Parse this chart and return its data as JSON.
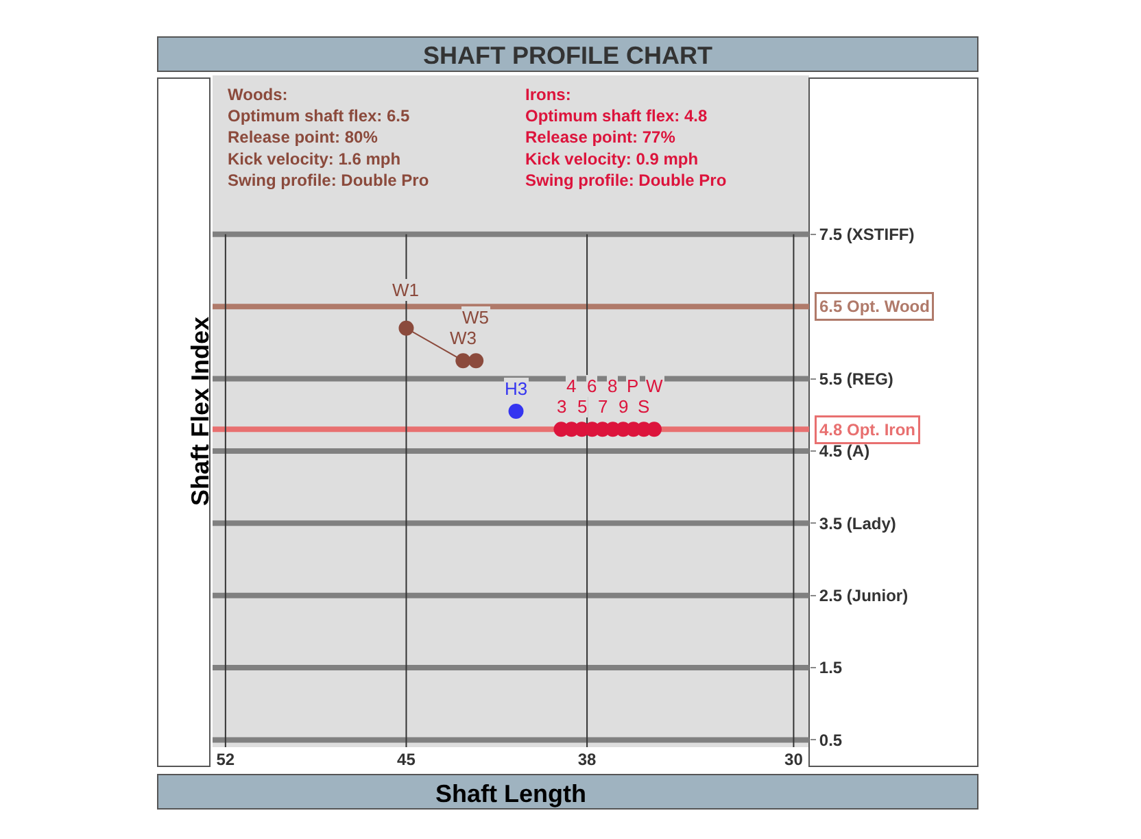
{
  "chart_data": {
    "type": "scatter",
    "title": "SHAFT PROFILE CHART",
    "xlabel": "Shaft Length",
    "ylabel": "Shaft Flex Index",
    "annotations": [
      "Woods:\nOptimum shaft flex: 6.5\nRelease point: 80%\nKick velocity: 1.6 mph\nSwing profile: Double Pro",
      "Irons:\nOptimum shaft flex: 4.8\nRelease point: 77%\nKick velocity: 0.9 mph\nSwing profile: Double Pro",
      {
        "text": "W1",
        "x": 45,
        "y": 6.2
      },
      {
        "text": "W3",
        "x": 42.8,
        "y": 5.75
      },
      {
        "text": "W5",
        "x": 42.3,
        "y": 5.75
      },
      {
        "text": "H3",
        "x": 40.75,
        "y": 5.05
      },
      {
        "text": "3",
        "x": 39.0,
        "y": 4.8
      },
      {
        "text": "4",
        "x": 38.6,
        "y": 4.8
      },
      {
        "text": "5",
        "x": 38.2,
        "y": 4.8
      },
      {
        "text": "6",
        "x": 37.8,
        "y": 4.8
      },
      {
        "text": "7",
        "x": 37.4,
        "y": 4.8
      },
      {
        "text": "8",
        "x": 37.0,
        "y": 4.8
      },
      {
        "text": "9",
        "x": 36.6,
        "y": 4.8
      },
      {
        "text": "P",
        "x": 36.2,
        "y": 4.8
      },
      {
        "text": "S",
        "x": 35.8,
        "y": 4.8
      },
      {
        "text": "W",
        "x": 35.4,
        "y": 4.8
      }
    ],
    "series": [
      {
        "type": "line",
        "color": "#8b4a3c",
        "x": [
          45,
          42.8,
          42.3
        ],
        "values": [
          6.2,
          5.75,
          5.75
        ]
      },
      {
        "color": "#dc143c",
        "x": [
          39.0,
          38.6,
          38.2,
          37.8,
          37.4,
          37.0,
          36.6,
          36.2,
          35.8,
          35.4
        ],
        "values": [
          4.8,
          4.8,
          4.8,
          4.8,
          4.8,
          4.8,
          4.8,
          4.8,
          4.8,
          4.8
        ]
      },
      {
        "color": "#3535f0",
        "x": [
          40.75
        ],
        "values": [
          5.05
        ]
      }
    ],
    "xlim": [
      52.5,
      29.4
    ],
    "xticks": [
      52,
      45,
      38,
      30
    ],
    "ylim": [
      0.4,
      9.7
    ],
    "yticks": [
      {
        "value": 0.5,
        "label": "0.5"
      },
      {
        "value": 1.5,
        "label": "1.5"
      },
      {
        "value": 2.5,
        "label": "2.5 (Junior)"
      },
      {
        "value": 3.5,
        "label": "3.5 (Lady)"
      },
      {
        "value": 4.5,
        "label": "4.5 (A)"
      },
      {
        "value": 5.5,
        "label": "5.5 (REG)"
      },
      {
        "value": 7.5,
        "label": "7.5 (XSTIFF)"
      }
    ],
    "ref_lines": [
      {
        "axis": "y",
        "value": 6.5,
        "label": "6.5 Opt. Wood",
        "color": "#b07a6a"
      },
      {
        "axis": "y",
        "value": 4.8,
        "label": "4.8 Opt. Iron",
        "color": "#e87070"
      }
    ],
    "grid": true,
    "marker": "circle"
  }
}
